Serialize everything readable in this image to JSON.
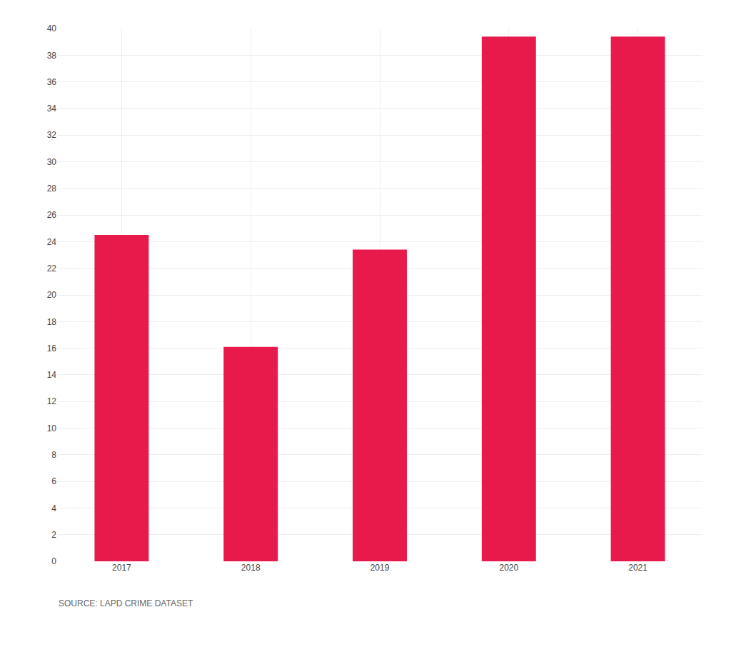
{
  "chart_data": {
    "type": "bar",
    "categories": [
      "2017",
      "2018",
      "2019",
      "2020",
      "2021"
    ],
    "values": [
      24.5,
      16.1,
      23.4,
      39.4,
      39.4
    ],
    "color": "#E8194B",
    "ylim": [
      0,
      40
    ],
    "yticks": [
      0,
      2,
      4,
      6,
      8,
      10,
      12,
      14,
      16,
      18,
      20,
      22,
      24,
      26,
      28,
      30,
      32,
      34,
      36,
      38,
      40
    ],
    "grid": true,
    "annotations": [
      "SOURCE: LAPD CRIME DATASET"
    ]
  }
}
